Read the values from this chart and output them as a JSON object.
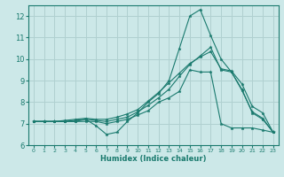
{
  "xlabel": "Humidex (Indice chaleur)",
  "xlim": [
    -0.5,
    23.5
  ],
  "ylim": [
    6,
    12.5
  ],
  "yticks": [
    6,
    7,
    8,
    9,
    10,
    11,
    12
  ],
  "xticks": [
    0,
    1,
    2,
    3,
    4,
    5,
    6,
    7,
    8,
    9,
    10,
    11,
    12,
    13,
    14,
    15,
    16,
    17,
    18,
    19,
    20,
    21,
    22,
    23
  ],
  "bg_color": "#cce8e8",
  "grid_color": "#b0d0d0",
  "line_color": "#1a7a6e",
  "series": [
    {
      "x": [
        0,
        1,
        2,
        3,
        4,
        5,
        6,
        7,
        8,
        9,
        10,
        11,
        12,
        13,
        14,
        15,
        16,
        17,
        18,
        19,
        20,
        21,
        22,
        23
      ],
      "y": [
        7.1,
        7.1,
        7.1,
        7.1,
        7.1,
        7.1,
        7.1,
        7.0,
        7.1,
        7.2,
        7.4,
        7.6,
        8.0,
        8.2,
        8.5,
        9.5,
        9.4,
        9.4,
        7.0,
        6.8,
        6.8,
        6.8,
        6.7,
        6.6
      ]
    },
    {
      "x": [
        0,
        1,
        2,
        3,
        4,
        5,
        6,
        7,
        8,
        9,
        10,
        11,
        12,
        13,
        14,
        15,
        16,
        17,
        18,
        19,
        20,
        21,
        22,
        23
      ],
      "y": [
        7.1,
        7.1,
        7.1,
        7.1,
        7.1,
        7.2,
        6.9,
        6.5,
        6.6,
        7.1,
        7.5,
        8.0,
        8.4,
        9.0,
        10.5,
        12.0,
        12.3,
        11.1,
        10.0,
        9.4,
        8.6,
        7.5,
        7.2,
        6.6
      ]
    },
    {
      "x": [
        0,
        1,
        2,
        3,
        4,
        5,
        6,
        7,
        8,
        9,
        10,
        11,
        12,
        13,
        14,
        15,
        16,
        17,
        18,
        19,
        20,
        21,
        22,
        23
      ],
      "y": [
        7.1,
        7.1,
        7.1,
        7.1,
        7.15,
        7.2,
        7.15,
        7.1,
        7.2,
        7.3,
        7.55,
        7.85,
        8.2,
        8.6,
        9.2,
        9.75,
        10.15,
        10.55,
        9.5,
        9.4,
        8.55,
        7.55,
        7.25,
        6.6
      ]
    },
    {
      "x": [
        0,
        1,
        2,
        3,
        4,
        5,
        6,
        7,
        8,
        9,
        10,
        11,
        12,
        13,
        14,
        15,
        16,
        17,
        18,
        19,
        20,
        21,
        22,
        23
      ],
      "y": [
        7.1,
        7.1,
        7.1,
        7.15,
        7.2,
        7.25,
        7.2,
        7.2,
        7.3,
        7.45,
        7.65,
        8.05,
        8.45,
        8.9,
        9.35,
        9.8,
        10.1,
        10.35,
        9.55,
        9.45,
        8.85,
        7.8,
        7.5,
        6.6
      ]
    }
  ]
}
